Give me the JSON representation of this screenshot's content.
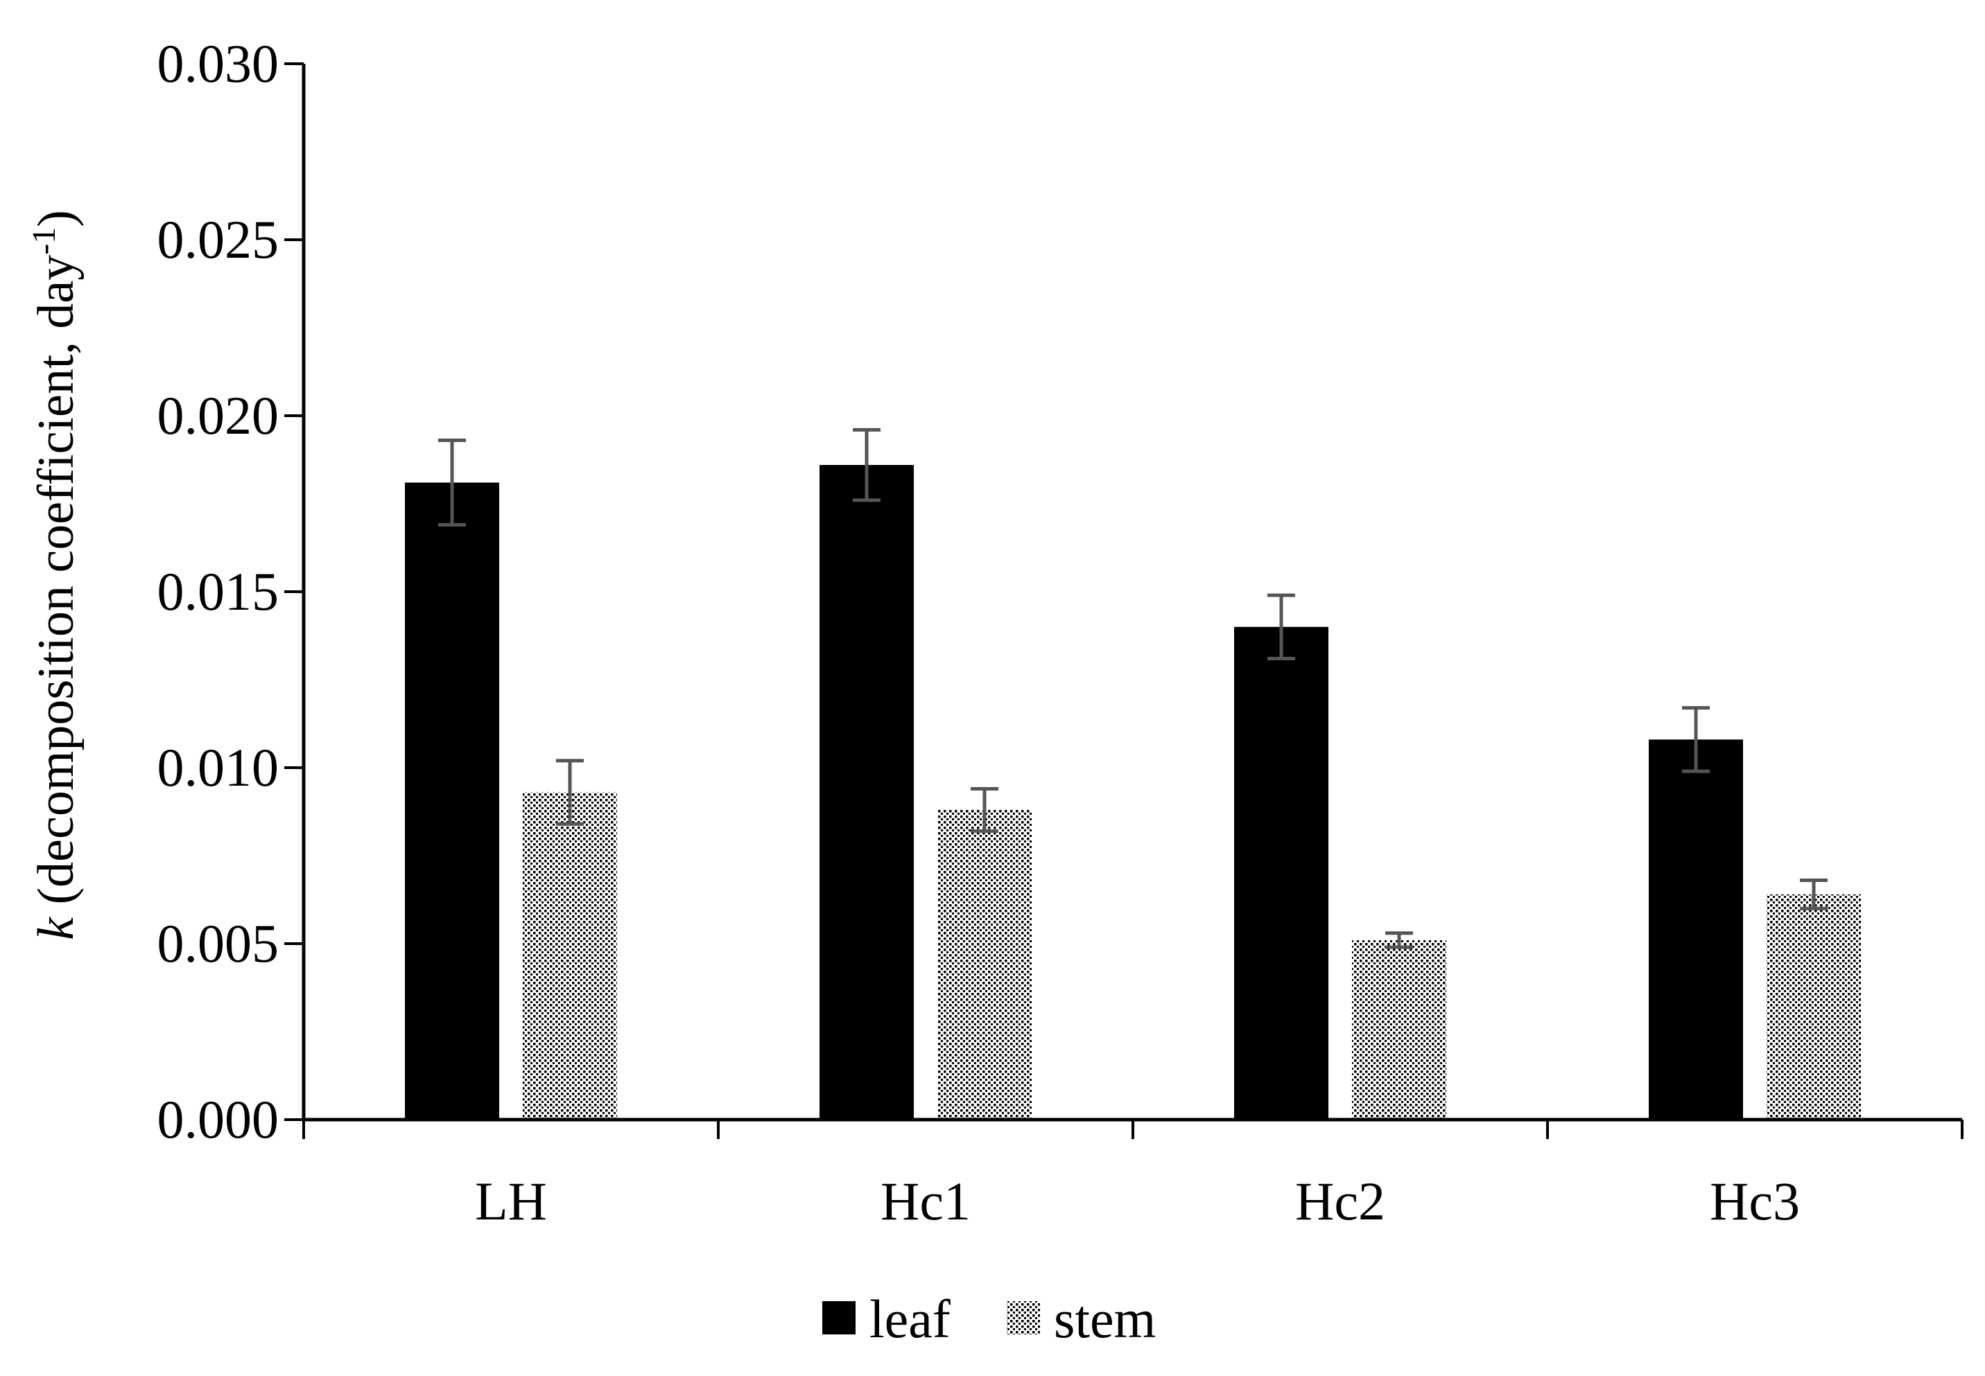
{
  "chart_data": {
    "type": "bar",
    "title": "",
    "xlabel": "",
    "ylabel": {
      "italic": "k",
      "main": " (decomposition coefficient, day",
      "superscript": "-1",
      "close": ")"
    },
    "categories": [
      "LH",
      "Hc1",
      "Hc2",
      "Hc3"
    ],
    "series": [
      {
        "name": "leaf",
        "pattern": "solid",
        "values": [
          0.0181,
          0.0186,
          0.014,
          0.0108
        ],
        "errors": [
          0.0012,
          0.001,
          0.0009,
          0.0009
        ]
      },
      {
        "name": "stem",
        "pattern": "dotted",
        "values": [
          0.0093,
          0.0088,
          0.0051,
          0.0064
        ],
        "errors": [
          0.0009,
          0.0006,
          0.0002,
          0.0004
        ]
      }
    ],
    "ylim": [
      0,
      0.03
    ],
    "yticks": [
      "0.000",
      "0.005",
      "0.010",
      "0.015",
      "0.020",
      "0.025",
      "0.030"
    ],
    "grid": false,
    "legend_position": "bottom-center",
    "colors": {
      "leaf": "#000000",
      "stem_dot": "#000000",
      "stem_bg": "#ffffff",
      "error_bar": "#555555",
      "axis": "#000000"
    }
  }
}
